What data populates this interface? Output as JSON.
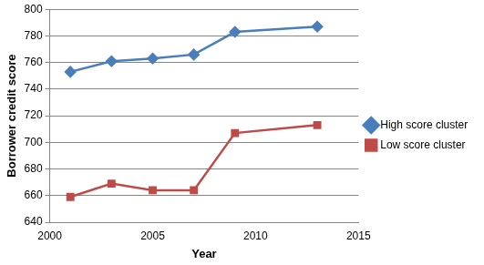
{
  "chart_data": {
    "type": "line",
    "x_label": "Year",
    "y_label": "Borrower credit score",
    "series": [
      {
        "name": "High score cluster",
        "color": "#4a7ebb",
        "marker": "diamond",
        "line_style": "solid",
        "x": [
          2001,
          2003,
          2005,
          2007,
          2009,
          2013
        ],
        "values": [
          753,
          761,
          763,
          766,
          783,
          787
        ]
      },
      {
        "name": "Low score cluster",
        "color": "#be4b48",
        "marker": "square",
        "line_style": "solid",
        "x": [
          2001,
          2003,
          2005,
          2007,
          2009,
          2013
        ],
        "values": [
          659,
          669,
          664,
          664,
          707,
          713
        ]
      }
    ],
    "xlim": [
      2000,
      2015
    ],
    "xticks": [
      2000,
      2005,
      2010,
      2015
    ],
    "ylim": [
      640,
      800
    ],
    "yticks": [
      640,
      660,
      680,
      700,
      720,
      740,
      760,
      780,
      800
    ],
    "grid": "y",
    "legend": "right"
  }
}
